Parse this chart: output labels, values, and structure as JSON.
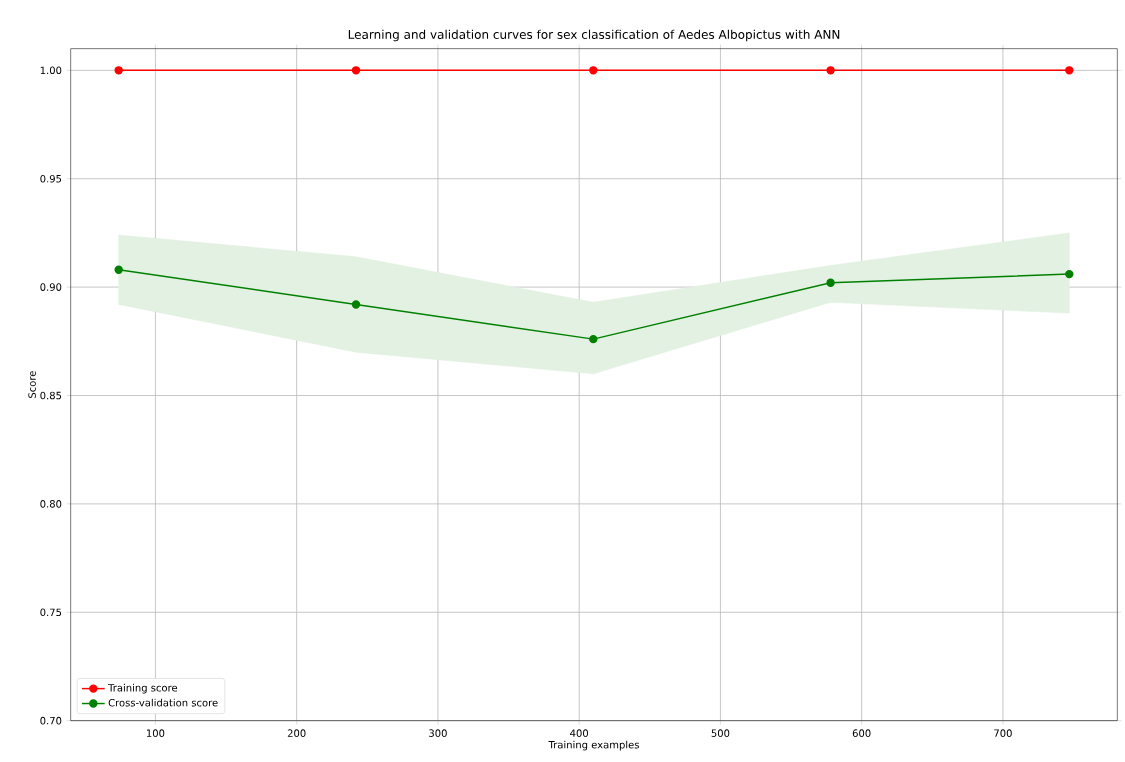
{
  "chart_data": {
    "type": "line",
    "title": "Learning and validation curves for sex classification of Aedes Albopictus with ANN",
    "xlabel": "Training examples",
    "ylabel": "Score",
    "x": [
      74,
      242,
      410,
      578,
      747
    ],
    "series": [
      {
        "name": "Training score",
        "color": "#ff0000",
        "values": [
          1.0,
          1.0,
          1.0,
          1.0,
          1.0
        ]
      },
      {
        "name": "Cross-validation score",
        "color": "#008000",
        "values": [
          0.908,
          0.892,
          0.876,
          0.902,
          0.906
        ],
        "lower": [
          0.892,
          0.87,
          0.86,
          0.893,
          0.888
        ],
        "upper": [
          0.924,
          0.914,
          0.893,
          0.91,
          0.925
        ]
      }
    ],
    "xlim": [
      40,
      781
    ],
    "ylim": [
      0.7,
      1.01
    ],
    "xticks": [
      100,
      200,
      300,
      400,
      500,
      600,
      700
    ],
    "yticks": [
      {
        "value": 0.7,
        "label": "0.70"
      },
      {
        "value": 0.75,
        "label": "0.75"
      },
      {
        "value": 0.8,
        "label": "0.80"
      },
      {
        "value": 0.85,
        "label": "0.85"
      },
      {
        "value": 0.9,
        "label": "0.90"
      },
      {
        "value": 0.95,
        "label": "0.95"
      },
      {
        "value": 1.0,
        "label": "1.00"
      }
    ],
    "grid": true,
    "legend": "bottom left",
    "marker": "circle",
    "line_style": "solid"
  }
}
